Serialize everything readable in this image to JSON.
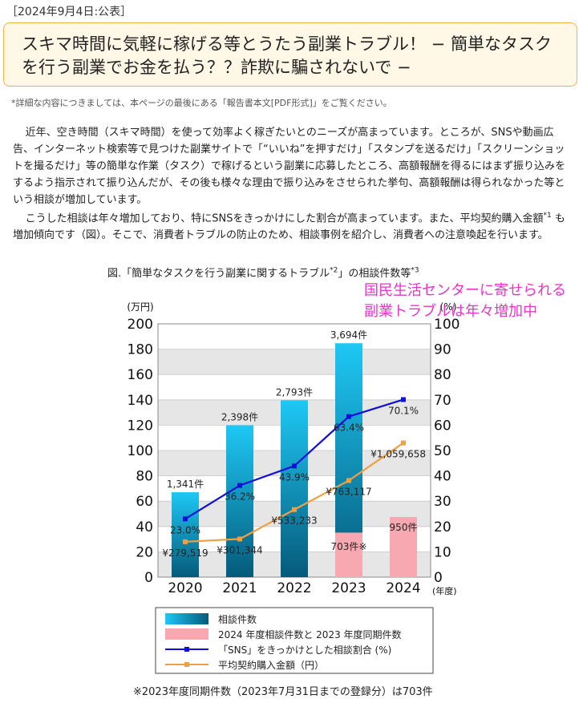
{
  "header": {
    "date": "［2024年9月4日:公表］",
    "title": "スキマ時間に気軽に稼げる等とうたう副業トラブル！ − 簡単なタスクを行う副業でお金を払う？？詐欺に騙されないで −",
    "note": "*詳細な内容につきましては、本ページの最後にある「報告書本文[PDF形式]」をご覧ください。"
  },
  "body": {
    "p1": "近年、空き時間（スキマ時間）を使って効率よく稼ぎたいとのニーズが高まっています。ところが、SNSや動画広告、インターネット検索等で見つけた副業サイトで「“いいね”を押すだけ」「スタンプを送るだけ」「スクリーンショットを撮るだけ」等の簡単な作業（タスク）で稼げるという副業に応募したところ、高額報酬を得るにはまず振り込みをするよう指示されて振り込んだが、その後も様々な理由で振り込みをさせられた挙句、高額報酬は得られなかった等という相談が増加しています。",
    "p2_before": "こうした相談は年々増加しており、特にSNSをきっかけにした割合が高まっています。また、平均契約購入金額",
    "p2_sup": "*1",
    "p2_after": " も増加傾向です（図）。そこで、消費者トラブルの防止のため、相談事例を紹介し、消費者への注意喚起を行います。"
  },
  "figure": {
    "caption_a": "図.「簡単なタスクを行う副業に関するトラブル",
    "caption_sup1": "*2",
    "caption_b": "」の相談件数等",
    "caption_sup2": "*3",
    "callout_line1": "国民生活センターに寄せられる",
    "callout_line2": "副業トラブルは年々増加中",
    "bottom_note": "※2023年度同期件数（2023年7月31日までの登録分）は703件"
  },
  "chart_data": {
    "type": "bar",
    "categories": [
      "2020",
      "2021",
      "2022",
      "2023",
      "2024"
    ],
    "x_unit": "(年度)",
    "left_axis": {
      "unit": "(万円)",
      "range": [
        0,
        200
      ],
      "ticks": [
        0,
        20,
        40,
        60,
        80,
        100,
        120,
        140,
        160,
        180,
        200
      ]
    },
    "right_axis": {
      "unit": "(%)",
      "range": [
        0,
        100
      ],
      "ticks": [
        0,
        10,
        20,
        30,
        40,
        50,
        60,
        70,
        80,
        90,
        100
      ]
    },
    "bars": [
      {
        "year": "2020",
        "value": 1341,
        "label": "1,341件"
      },
      {
        "year": "2021",
        "value": 2398,
        "label": "2,398件"
      },
      {
        "year": "2022",
        "value": 2793,
        "label": "2,793件"
      },
      {
        "year": "2023",
        "value": 3694,
        "label": "3,694件",
        "same_period": 703,
        "same_period_label": "703件※"
      },
      {
        "year": "2024",
        "value": 950,
        "label": "950件"
      }
    ],
    "sns_share": {
      "name": "「SNS」をきっかけとした相談割合 (%)",
      "color": "#1010d8",
      "values": [
        23.0,
        36.2,
        43.9,
        63.4,
        70.1
      ],
      "labels": [
        "23.0%",
        "36.2%",
        "43.9%",
        "63.4%",
        "70.1%"
      ]
    },
    "avg_amount": {
      "name": "平均契約購入金額（円）",
      "color": "#f0a040",
      "values": [
        279519,
        301344,
        533233,
        763117,
        1059658
      ],
      "labels": [
        "¥279,519",
        "¥301,344",
        "¥533,233",
        "¥763,117",
        "¥1,059,658"
      ]
    },
    "legend": [
      {
        "key": "bar",
        "label": "相談件数"
      },
      {
        "key": "pink",
        "label": "2024 年度相談件数と 2023 年度同期件数"
      },
      {
        "key": "sns",
        "label": "「SNS」をきっかけとした相談割合 (%)"
      },
      {
        "key": "amount",
        "label": "平均契約購入金額（円）"
      }
    ],
    "colors": {
      "bar_top": "#1ec8f5",
      "bar_bottom": "#055a7a",
      "pink": "#f8a8b0",
      "grid_band": "#e6e6e6"
    }
  }
}
